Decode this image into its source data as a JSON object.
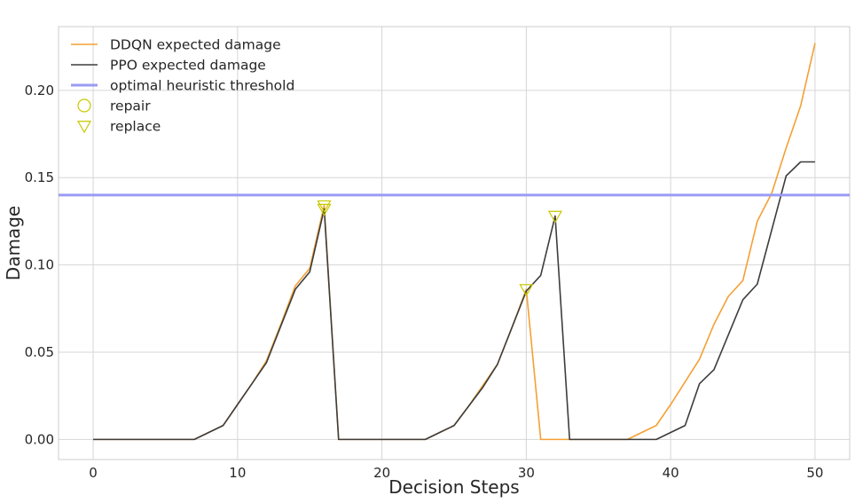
{
  "chart_data": {
    "type": "line",
    "xlabel": "Decision Steps",
    "ylabel": "Damage",
    "xlim": [
      -2.4,
      52.4
    ],
    "ylim": [
      -0.0115,
      0.2365
    ],
    "x_ticks": [
      "0",
      "10",
      "20",
      "30",
      "40",
      "50"
    ],
    "y_ticks": [
      "0.00",
      "0.05",
      "0.10",
      "0.15",
      "0.20"
    ],
    "x_tick_values": [
      0,
      10,
      20,
      30,
      40,
      50
    ],
    "y_tick_values": [
      0.0,
      0.05,
      0.1,
      0.15,
      0.2
    ],
    "grid": true,
    "legend_position": "top-left",
    "series": [
      {
        "name": "DDQN expected damage",
        "color": "#f4a034",
        "x": [
          0,
          1,
          2,
          3,
          4,
          5,
          6,
          7,
          8,
          9,
          10,
          11,
          12,
          13,
          14,
          15,
          16,
          17,
          18,
          19,
          20,
          21,
          22,
          23,
          24,
          25,
          26,
          27,
          28,
          29,
          30,
          31,
          32,
          33,
          34,
          35,
          36,
          37,
          38,
          39,
          40,
          41,
          42,
          43,
          44,
          45,
          46,
          47,
          48,
          49,
          50
        ],
        "values": [
          0,
          0,
          0,
          0,
          0,
          0,
          0,
          0,
          0.004,
          0.008,
          0.02,
          0.032,
          0.045,
          0.066,
          0.088,
          0.098,
          0.134,
          0,
          0,
          0,
          0,
          0,
          0,
          0,
          0.004,
          0.008,
          0.019,
          0.031,
          0.043,
          0.064,
          0.086,
          0,
          0,
          0,
          0,
          0,
          0,
          0,
          0.004,
          0.008,
          0.02,
          0.033,
          0.046,
          0.066,
          0.082,
          0.091,
          0.125,
          0.141,
          0.167,
          0.191,
          0.227
        ]
      },
      {
        "name": "PPO expected damage",
        "color": "#3d3d3d",
        "x": [
          0,
          1,
          2,
          3,
          4,
          5,
          6,
          7,
          8,
          9,
          10,
          11,
          12,
          13,
          14,
          15,
          16,
          17,
          18,
          19,
          20,
          21,
          22,
          23,
          24,
          25,
          26,
          27,
          28,
          29,
          30,
          31,
          32,
          33,
          34,
          35,
          36,
          37,
          38,
          39,
          40,
          41,
          42,
          43,
          44,
          45,
          46,
          47,
          48,
          49,
          50
        ],
        "values": [
          0,
          0,
          0,
          0,
          0,
          0,
          0,
          0,
          0.004,
          0.008,
          0.02,
          0.032,
          0.044,
          0.065,
          0.086,
          0.096,
          0.132,
          0,
          0,
          0,
          0,
          0,
          0,
          0,
          0.004,
          0.008,
          0.019,
          0.03,
          0.043,
          0.064,
          0.085,
          0.094,
          0.128,
          0,
          0,
          0,
          0,
          0,
          0,
          0,
          0.004,
          0.008,
          0.032,
          0.04,
          0.06,
          0.08,
          0.089,
          0.12,
          0.151,
          0.159,
          0.159
        ]
      },
      {
        "name": "optimal heuristic threshold",
        "color": "#9b9bf5",
        "kind": "hline",
        "value": 0.14
      }
    ],
    "markers": [
      {
        "name": "repair",
        "symbol": "circle",
        "color": "#c8c800",
        "points": []
      },
      {
        "name": "replace",
        "symbol": "triangle-down",
        "color": "#c8c800",
        "points": [
          [
            16,
            0.134
          ],
          [
            16,
            0.132
          ],
          [
            30,
            0.086
          ],
          [
            32,
            0.128
          ]
        ]
      }
    ]
  }
}
